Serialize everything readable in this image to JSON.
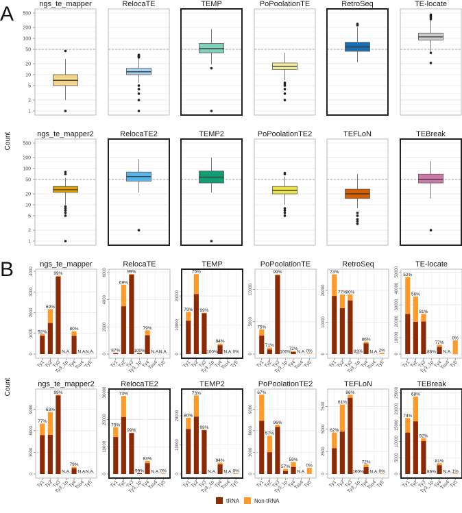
{
  "panel_labels": {
    "a": "A",
    "b": "B"
  },
  "y_label": "Count",
  "legend": {
    "trna": "tRNA",
    "non_trna": "Non-tRNA",
    "trna_color": "#8b2a04",
    "non_trna_color": "#fd9a2a"
  },
  "chart_data": [
    {
      "type": "boxplot",
      "panel": "A",
      "scale": "log10",
      "ylim": [
        1,
        500
      ],
      "yticks": [
        "1",
        "2",
        "5",
        "10",
        "20",
        "50",
        "100",
        "200",
        "500"
      ],
      "reference_line": 50,
      "ylabel": "Count",
      "series": [
        {
          "name": "ngs_te_mapper",
          "color": "#f5d58c",
          "highlighted": false,
          "whisker_low": 2,
          "q1": 5,
          "median": 7,
          "q3": 10,
          "whisker_high": 27,
          "outliers": [
            1,
            45
          ]
        },
        {
          "name": "RelocaTE",
          "color": "#a6d3ef",
          "highlighted": false,
          "whisker_low": 6,
          "q1": 10,
          "median": 12,
          "q3": 15,
          "whisker_high": 28,
          "outliers": [
            1,
            2,
            3,
            4,
            5,
            30,
            31,
            32,
            33,
            35
          ]
        },
        {
          "name": "TEMP",
          "color": "#7fd0b9",
          "highlighted": true,
          "whisker_low": 19,
          "q1": 40,
          "median": 52,
          "q3": 72,
          "whisker_high": 180,
          "outliers": [
            1,
            15
          ]
        },
        {
          "name": "PoPoolationTE",
          "color": "#f6f0a0",
          "highlighted": false,
          "whisker_low": 7,
          "q1": 14,
          "median": 17,
          "q3": 21,
          "whisker_high": 40,
          "outliers": [
            2,
            3,
            4,
            5,
            5.5,
            6
          ]
        },
        {
          "name": "RetroSeq",
          "color": "#1a6fb3",
          "highlighted": true,
          "whisker_low": 22,
          "q1": 44,
          "median": 58,
          "q3": 78,
          "whisker_high": 200,
          "outliers": [
            230,
            250
          ]
        },
        {
          "name": "TE-locate",
          "color": "#cccccc",
          "highlighted": false,
          "whisker_low": 45,
          "q1": 90,
          "median": 110,
          "q3": 140,
          "whisker_high": 320,
          "outliers": [
            21,
            40,
            340,
            370,
            400,
            430,
            450
          ]
        },
        {
          "name": "ngs_te_mapper2",
          "color": "#e0a000",
          "highlighted": false,
          "whisker_low": 10,
          "q1": 22,
          "median": 26,
          "q3": 32,
          "whisker_high": 55,
          "outliers": [
            1,
            5,
            6,
            7,
            8,
            9,
            70,
            80
          ]
        },
        {
          "name": "RelocaTE2",
          "color": "#56b4e9",
          "highlighted": true,
          "whisker_low": 22,
          "q1": 45,
          "median": 60,
          "q3": 80,
          "whisker_high": 180,
          "outliers": [
            2
          ]
        },
        {
          "name": "TEMP2",
          "color": "#109e73",
          "highlighted": true,
          "whisker_low": 22,
          "q1": 40,
          "median": 58,
          "q3": 85,
          "whisker_high": 200,
          "outliers": [
            1
          ]
        },
        {
          "name": "PoPoolationTE2",
          "color": "#f0e442",
          "highlighted": false,
          "whisker_low": 10,
          "q1": 20,
          "median": 25,
          "q3": 32,
          "whisker_high": 60,
          "outliers": [
            5,
            6,
            7,
            8,
            70,
            75
          ]
        },
        {
          "name": "TEFLoN",
          "color": "#d55e00",
          "highlighted": false,
          "whisker_low": 8,
          "q1": 15,
          "median": 20,
          "q3": 27,
          "whisker_high": 70,
          "outliers": [
            3,
            3.5,
            4,
            5,
            6
          ]
        },
        {
          "name": "TEBreak",
          "color": "#cc79a7",
          "highlighted": true,
          "whisker_low": 15,
          "q1": 40,
          "median": 50,
          "q3": 70,
          "whisker_high": 160,
          "outliers": [
            2
          ]
        }
      ]
    },
    {
      "type": "bar",
      "stacked": true,
      "panel": "B",
      "ylabel": "Count",
      "categories": [
        "Ty1",
        "Ty2",
        "Ty3",
        "Ty3_1p",
        "Ty4",
        "Tsu4",
        "Ty5"
      ],
      "series_names": [
        "tRNA",
        "Non-tRNA"
      ],
      "panels": [
        {
          "name": "ngs_te_mapper",
          "highlighted": false,
          "ylim": [
            0,
            4000
          ],
          "yticks": [
            "0",
            "1000",
            "2000",
            "3000",
            "4000"
          ],
          "totals": [
            960,
            2170,
            3780,
            0,
            1100,
            0,
            0
          ],
          "trna_pct_labels": [
            "92%",
            "69%",
            "99%",
            "N.A.",
            "80%",
            "N.A.",
            "N.A."
          ]
        },
        {
          "name": "RelocaTE",
          "highlighted": false,
          "ylim": [
            0,
            6100
          ],
          "yticks": [
            "0",
            "2000",
            "4000",
            "6000"
          ],
          "totals": [
            90,
            5100,
            5900,
            80,
            1750,
            0,
            0
          ],
          "trna_pct_labels": [
            "87%",
            "69%",
            "99%",
            "100%",
            "79%",
            "N.A.",
            "N.A."
          ]
        },
        {
          "name": "TEMP",
          "highlighted": true,
          "ylim": [
            0,
            28500
          ],
          "yticks": [
            "0",
            "10000",
            "20000"
          ],
          "totals": [
            14500,
            27500,
            14200,
            0,
            3600,
            0,
            0
          ],
          "trna_pct_labels": [
            "79%",
            "75%",
            "99%",
            "100%",
            "84%",
            "N.A.",
            "0%"
          ]
        },
        {
          "name": "PoPoolationTE",
          "highlighted": false,
          "ylim": [
            0,
            12800
          ],
          "yticks": [
            "0",
            "5000",
            "10000"
          ],
          "totals": [
            3800,
            1000,
            12300,
            0,
            450,
            0,
            100
          ],
          "trna_pct_labels": [
            "75%",
            "71%",
            "99%",
            "100%",
            "72%",
            "N.A.",
            "0%"
          ]
        },
        {
          "name": "RetroSeq",
          "highlighted": false,
          "ylim": [
            0,
            26000
          ],
          "yticks": [
            "0",
            "10000",
            "20000"
          ],
          "totals": [
            25000,
            18700,
            18700,
            100,
            3900,
            0,
            400
          ],
          "trna_pct_labels": [
            "73%",
            "77%",
            "90%",
            "93%",
            "86%",
            "N.A.",
            "2%"
          ]
        },
        {
          "name": "TE-locate",
          "highlighted": false,
          "ylim": [
            0,
            50500
          ],
          "yticks": [
            "0",
            "10000",
            "20000",
            "30000",
            "40000",
            "50000"
          ],
          "totals": [
            47000,
            35000,
            24500,
            0,
            5700,
            0,
            8400
          ],
          "trna_pct_labels": [
            "52%",
            "56%",
            "81%",
            "86%",
            "77%",
            "N.A.",
            "0%"
          ]
        },
        {
          "name": "ngs_te_mapper2",
          "highlighted": false,
          "ylim": [
            0,
            11500
          ],
          "yticks": [
            "0",
            "3000",
            "6000",
            "9000"
          ],
          "totals": [
            7000,
            8600,
            11000,
            0,
            1000,
            0,
            0
          ],
          "trna_pct_labels": [
            "77%",
            "63%",
            "99%",
            "N.A.",
            "79%",
            "N.A.",
            "N.A."
          ]
        },
        {
          "name": "RelocaTE2",
          "highlighted": true,
          "ylim": [
            0,
            30500
          ],
          "yticks": [
            "0",
            "10000",
            "20000",
            "30000"
          ],
          "totals": [
            17200,
            28700,
            15200,
            300,
            4800,
            0,
            200
          ],
          "trna_pct_labels": [
            "79%",
            "73%",
            "99%",
            "99%",
            "83%",
            "N.A.",
            "0%"
          ]
        },
        {
          "name": "TEMP2",
          "highlighted": true,
          "ylim": [
            0,
            28500
          ],
          "yticks": [
            "0",
            "10000",
            "20000"
          ],
          "totals": [
            19300,
            27000,
            15200,
            0,
            3900,
            0,
            200
          ],
          "trna_pct_labels": [
            "80%",
            "73%",
            "99%",
            "N.A.",
            "84%",
            "N.A.",
            "0%"
          ]
        },
        {
          "name": "PoPoolationTE2",
          "highlighted": false,
          "ylim": [
            0,
            11500
          ],
          "yticks": [
            "0",
            "3000",
            "6000",
            "9000"
          ],
          "totals": [
            11000,
            5300,
            6800,
            700,
            1650,
            0,
            850
          ],
          "trna_pct_labels": [
            "67%",
            "57%",
            "96%",
            "57%",
            "59%",
            "N.A.",
            "0%"
          ]
        },
        {
          "name": "TEFLoN",
          "highlighted": false,
          "ylim": [
            0,
            9200
          ],
          "yticks": [
            "0",
            "2500",
            "5000",
            "7500"
          ],
          "totals": [
            4600,
            7700,
            8800,
            0,
            1050,
            0,
            50
          ],
          "trna_pct_labels": [
            "62%",
            "61%",
            "96%",
            "100%",
            "72%",
            "N.A.",
            "0%"
          ]
        },
        {
          "name": "TEBreak",
          "highlighted": true,
          "ylim": [
            0,
            25500
          ],
          "yticks": [
            "0",
            "5000",
            "10000",
            "15000",
            "20000",
            "25000"
          ],
          "totals": [
            17200,
            23800,
            11000,
            0,
            3300,
            0,
            150
          ],
          "trna_pct_labels": [
            "74%",
            "68%",
            "92%",
            "86%",
            "81%",
            "N.A.",
            "1%"
          ]
        }
      ]
    }
  ]
}
